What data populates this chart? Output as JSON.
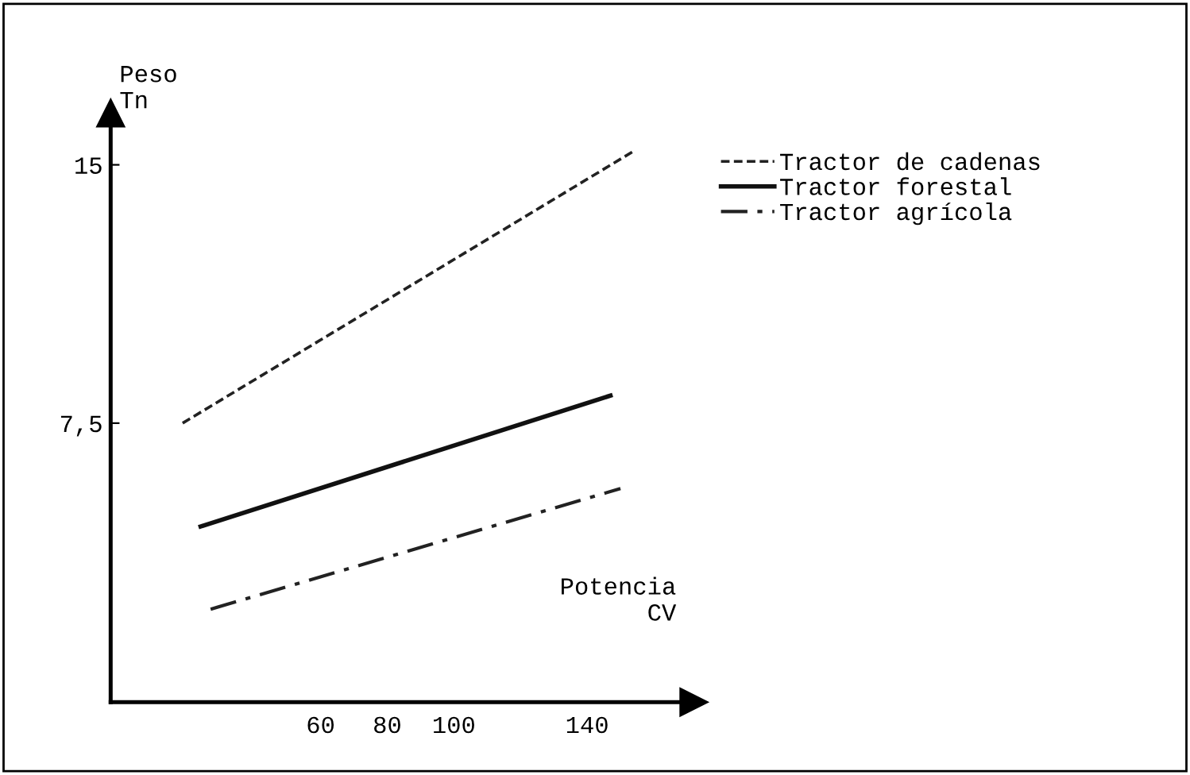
{
  "chart_data": {
    "type": "line",
    "xlabel": "Potencia\nCV",
    "ylabel": "Peso\nTn",
    "xlim": [
      -3,
      172
    ],
    "ylim": [
      -0.6,
      16.5
    ],
    "xticks": [
      60,
      80,
      100,
      140
    ],
    "yticks": [
      15,
      {
        "value": 7.5,
        "label": "7,5"
      }
    ],
    "grid": false,
    "legend": "right",
    "series": [
      {
        "name": "Tractor de cadenas",
        "color": "#222222",
        "line_style": "dashed",
        "x": [
          18.6,
          154
        ],
        "values": [
          7.5,
          15.4
        ]
      },
      {
        "name": "Tractor forestal",
        "color": "#111111",
        "line_style": "solid",
        "x": [
          24,
          147
        ],
        "values": [
          4.5,
          8.3
        ]
      },
      {
        "name": "Tractor agrícola",
        "color": "#222222",
        "line_style": "dashdot",
        "x": [
          27,
          150
        ],
        "values": [
          2.1,
          5.6
        ]
      }
    ]
  }
}
